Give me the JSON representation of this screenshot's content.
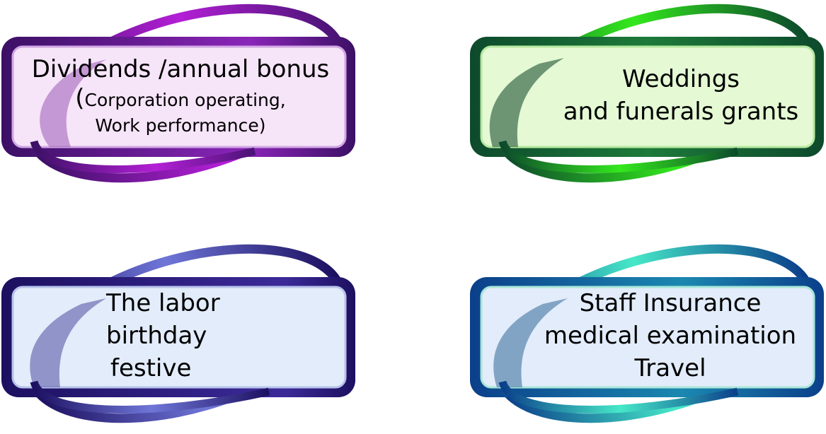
{
  "cards": [
    {
      "id": "dividends",
      "title": "Dividends /annual bonus",
      "paren_open": "(",
      "detail_1": "Corporation operating,",
      "detail_2": "Work performance",
      "paren_close": ")",
      "colors": {
        "frame": "#3c1065",
        "ring": "#b31fd6",
        "fill": "#f6e4f8",
        "stripe": "#9a5ab7"
      }
    },
    {
      "id": "weddings",
      "line_1": "Weddings",
      "line_2": "and funerals grants",
      "colors": {
        "frame": "#0d4a2c",
        "ring": "#33e81d",
        "fill": "#e4f9d4",
        "stripe": "#3a6b4c"
      }
    },
    {
      "id": "labor",
      "line_1": "The labor",
      "line_2": "birthday",
      "line_3": "festive",
      "colors": {
        "frame": "#1c1060",
        "ring": "#6f76d8",
        "fill": "#e2ecfa",
        "stripe": "#5a5aa8"
      }
    },
    {
      "id": "staff",
      "line_1": "Staff Insurance",
      "line_2": "medical examination",
      "line_3": "Travel",
      "colors": {
        "frame": "#0b3f8a",
        "ring": "#46e8c8",
        "fill": "#e2ecfa",
        "stripe": "#4e7ea8"
      }
    }
  ]
}
